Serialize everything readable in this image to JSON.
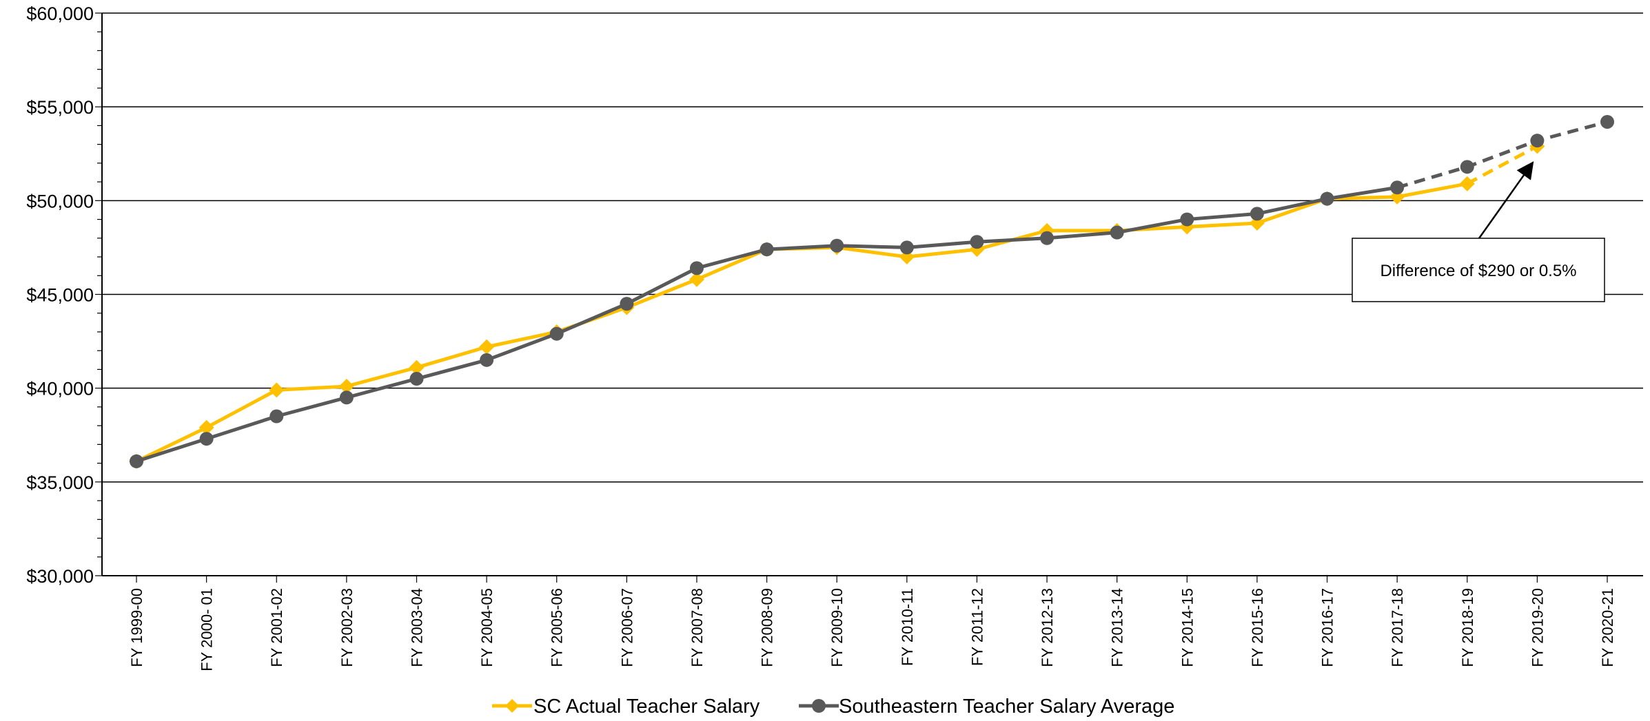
{
  "chart_data": {
    "type": "line",
    "title": "",
    "xlabel": "",
    "ylabel": "",
    "ylim": [
      30000,
      60000
    ],
    "y_ticks": [
      "$30,000",
      "$35,000",
      "$40,000",
      "$45,000",
      "$50,000",
      "$55,000",
      "$60,000"
    ],
    "y_tick_values": [
      30000,
      35000,
      40000,
      45000,
      50000,
      55000,
      60000
    ],
    "grid": "horizontal major gridlines",
    "legend_position": "bottom",
    "categories": [
      "FY 1999-00",
      "FY 2000- 01",
      "FY 2001-02",
      "FY 2002-03",
      "FY 2003-04",
      "FY 2004-05",
      "FY 2005-06",
      "FY 2006-07",
      "FY 2007-08",
      "FY 2008-09",
      "FY 2009-10",
      "FY 2010-11",
      "FY 2011-12",
      "FY 2012-13",
      "FY 2013-14",
      "FY 2014-15",
      "FY 2015-16",
      "FY 2016-17",
      "FY 2017-18",
      "FY 2018-19",
      "FY 2019-20",
      "FY 2020-21"
    ],
    "series": [
      {
        "name": "SC Actual Teacher Salary",
        "color": "#FFC000",
        "marker": "diamond",
        "values": [
          36100,
          37900,
          39900,
          40100,
          41100,
          42200,
          43000,
          44300,
          45800,
          47400,
          47500,
          47000,
          47400,
          48400,
          48400,
          48600,
          48800,
          50100,
          50200,
          50900,
          52900,
          null
        ],
        "projected_from_index": 19
      },
      {
        "name": "Southeastern Teacher Salary Average",
        "color": "#595959",
        "marker": "circle",
        "values": [
          36100,
          37300,
          38500,
          39500,
          40500,
          41500,
          42900,
          44500,
          46400,
          47400,
          47600,
          47500,
          47800,
          48000,
          48300,
          49000,
          49300,
          50100,
          50700,
          51800,
          53200,
          54200
        ],
        "projected_from_index": 18
      }
    ],
    "annotation": {
      "text": "Difference of $290 or 0.5%",
      "points_to_category": "FY 2019-20"
    }
  }
}
